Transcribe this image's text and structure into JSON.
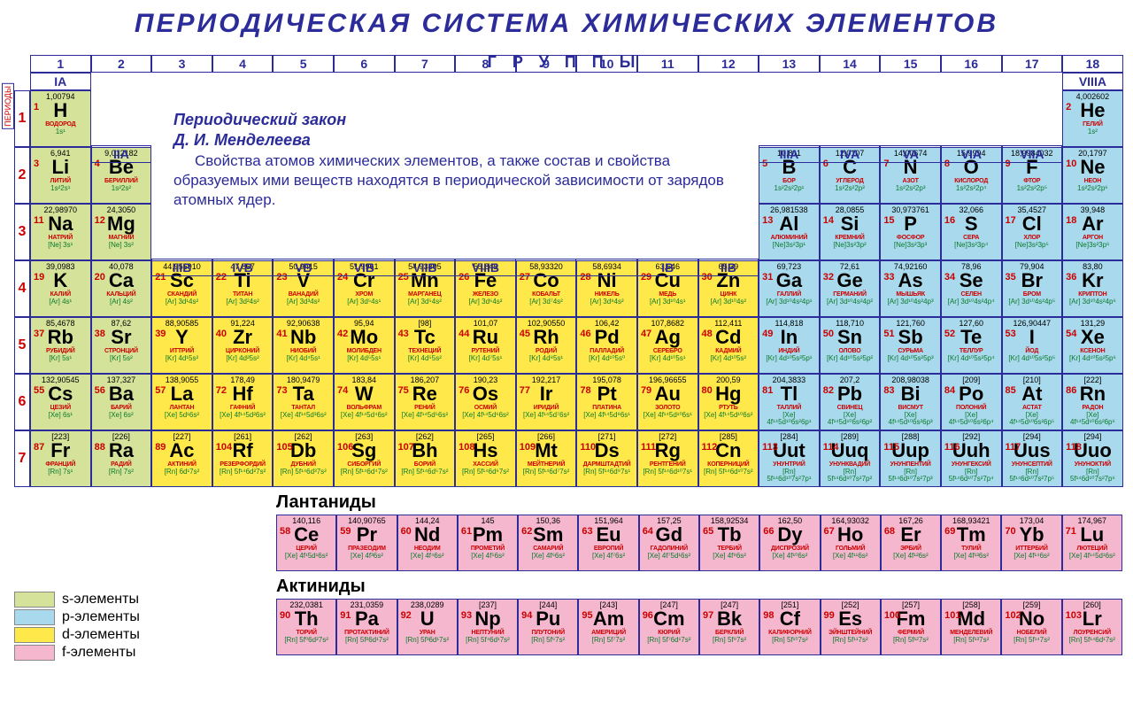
{
  "title": "ПЕРИОДИЧЕСКАЯ СИСТЕМА ХИМИЧЕСКИХ ЭЛЕМЕНТОВ",
  "labels": {
    "periods": "ПЕРИОДЫ",
    "groups": "ГРУППЫ",
    "lanthanides": "Лантаниды",
    "actinides": "Актиниды"
  },
  "law": {
    "title1": "Периодический закон",
    "title2": "Д. И. Менделеева",
    "text": "Свойства атомов химических элементов, а также состав и свойства образуемых ими веществ находятся в периодической зависимости от зарядов атомных ядер."
  },
  "legend": [
    {
      "block": "s",
      "label": "s-элементы",
      "color": "#d4e29a"
    },
    {
      "block": "p",
      "label": "p-элементы",
      "color": "#a8d9ec"
    },
    {
      "block": "d",
      "label": "d-элементы",
      "color": "#ffe94a"
    },
    {
      "block": "f",
      "label": "f-элементы",
      "color": "#f4b7ce"
    }
  ],
  "colnums": [
    "1",
    "2",
    "3",
    "4",
    "5",
    "6",
    "7",
    "8",
    "9",
    "10",
    "11",
    "12",
    "13",
    "14",
    "15",
    "16",
    "17",
    "18"
  ],
  "roman_row1": {
    "0": "IA",
    "17": "VIIIA"
  },
  "roman_row2": {
    "1": "IIA",
    "12": "IIIA",
    "13": "IVA",
    "14": "VA",
    "15": "VIA",
    "16": "VIIA"
  },
  "roman_row4": {
    "2": "IIIB",
    "3": "IVB",
    "4": "VB",
    "5": "VIB",
    "6": "VIIB",
    "7": "VIIIB",
    "8": "",
    "9": "",
    "10": "IB",
    "11": "IIB"
  },
  "periods": [
    "1",
    "2",
    "3",
    "4",
    "5",
    "6",
    "7"
  ],
  "colors": {
    "s": "#d4e29a",
    "p": "#a8d9ec",
    "d": "#ffe94a",
    "f": "#f4b7ce",
    "title": "#2b2b9a",
    "num": "#c00",
    "cfg": "#0a7a2a"
  },
  "elements": [
    {
      "n": 1,
      "s": "H",
      "nm": "ВОДОРОД",
      "m": "1,00794",
      "c": "1s¹",
      "b": "s",
      "p": 1,
      "g": 1
    },
    {
      "n": 2,
      "s": "He",
      "nm": "ГЕЛИЙ",
      "m": "4,002602",
      "c": "1s²",
      "b": "p",
      "p": 1,
      "g": 18
    },
    {
      "n": 3,
      "s": "Li",
      "nm": "ЛИТИЙ",
      "m": "6,941",
      "c": "1s²2s¹",
      "b": "s",
      "p": 2,
      "g": 1
    },
    {
      "n": 4,
      "s": "Be",
      "nm": "БЕРИЛЛИЙ",
      "m": "9,012182",
      "c": "1s²2s²",
      "b": "s",
      "p": 2,
      "g": 2
    },
    {
      "n": 5,
      "s": "B",
      "nm": "БОР",
      "m": "10,811",
      "c": "1s²2s²2p¹",
      "b": "p",
      "p": 2,
      "g": 13
    },
    {
      "n": 6,
      "s": "C",
      "nm": "УГЛЕРОД",
      "m": "12,0107",
      "c": "1s²2s²2p²",
      "b": "p",
      "p": 2,
      "g": 14
    },
    {
      "n": 7,
      "s": "N",
      "nm": "АЗОТ",
      "m": "14,00674",
      "c": "1s²2s²2p³",
      "b": "p",
      "p": 2,
      "g": 15
    },
    {
      "n": 8,
      "s": "O",
      "nm": "КИСЛОРОД",
      "m": "15,9994",
      "c": "1s²2s²2p⁴",
      "b": "p",
      "p": 2,
      "g": 16
    },
    {
      "n": 9,
      "s": "F",
      "nm": "ФТОР",
      "m": "18,9984032",
      "c": "1s²2s²2p⁵",
      "b": "p",
      "p": 2,
      "g": 17
    },
    {
      "n": 10,
      "s": "Ne",
      "nm": "НЕОН",
      "m": "20,1797",
      "c": "1s²2s²2p⁶",
      "b": "p",
      "p": 2,
      "g": 18
    },
    {
      "n": 11,
      "s": "Na",
      "nm": "НАТРИЙ",
      "m": "22,98970",
      "c": "[Ne] 3s¹",
      "b": "s",
      "p": 3,
      "g": 1
    },
    {
      "n": 12,
      "s": "Mg",
      "nm": "МАГНИЙ",
      "m": "24,3050",
      "c": "[Ne] 3s²",
      "b": "s",
      "p": 3,
      "g": 2
    },
    {
      "n": 13,
      "s": "Al",
      "nm": "АЛЮМИНИЙ",
      "m": "26,981538",
      "c": "[Ne]3s²3p¹",
      "b": "p",
      "p": 3,
      "g": 13
    },
    {
      "n": 14,
      "s": "Si",
      "nm": "КРЕМНИЙ",
      "m": "28,0855",
      "c": "[Ne]3s²3p²",
      "b": "p",
      "p": 3,
      "g": 14
    },
    {
      "n": 15,
      "s": "P",
      "nm": "ФОСФОР",
      "m": "30,973761",
      "c": "[Ne]3s²3p³",
      "b": "p",
      "p": 3,
      "g": 15
    },
    {
      "n": 16,
      "s": "S",
      "nm": "СЕРА",
      "m": "32,066",
      "c": "[Ne]3s²3p⁴",
      "b": "p",
      "p": 3,
      "g": 16
    },
    {
      "n": 17,
      "s": "Cl",
      "nm": "ХЛОР",
      "m": "35,4527",
      "c": "[Ne]3s²3p⁵",
      "b": "p",
      "p": 3,
      "g": 17
    },
    {
      "n": 18,
      "s": "Ar",
      "nm": "АРГОН",
      "m": "39,948",
      "c": "[Ne]3s²3p⁶",
      "b": "p",
      "p": 3,
      "g": 18
    },
    {
      "n": 19,
      "s": "K",
      "nm": "КАЛИЙ",
      "m": "39,0983",
      "c": "[Ar] 4s¹",
      "b": "s",
      "p": 4,
      "g": 1
    },
    {
      "n": 20,
      "s": "Ca",
      "nm": "КАЛЬЦИЙ",
      "m": "40,078",
      "c": "[Ar] 4s²",
      "b": "s",
      "p": 4,
      "g": 2
    },
    {
      "n": 21,
      "s": "Sc",
      "nm": "СКАНДИЙ",
      "m": "44,955910",
      "c": "[Ar] 3d¹4s²",
      "b": "d",
      "p": 4,
      "g": 3
    },
    {
      "n": 22,
      "s": "Ti",
      "nm": "ТИТАН",
      "m": "47,867",
      "c": "[Ar] 3d²4s²",
      "b": "d",
      "p": 4,
      "g": 4
    },
    {
      "n": 23,
      "s": "V",
      "nm": "ВАНАДИЙ",
      "m": "50,9415",
      "c": "[Ar] 3d³4s²",
      "b": "d",
      "p": 4,
      "g": 5
    },
    {
      "n": 24,
      "s": "Cr",
      "nm": "ХРОМ",
      "m": "51,9961",
      "c": "[Ar] 3d⁵4s¹",
      "b": "d",
      "p": 4,
      "g": 6
    },
    {
      "n": 25,
      "s": "Mn",
      "nm": "МАРГАНЕЦ",
      "m": "54,93805",
      "c": "[Ar] 3d⁵4s²",
      "b": "d",
      "p": 4,
      "g": 7
    },
    {
      "n": 26,
      "s": "Fe",
      "nm": "ЖЕЛЕЗО",
      "m": "55,845",
      "c": "[Ar] 3d⁶4s²",
      "b": "d",
      "p": 4,
      "g": 8
    },
    {
      "n": 27,
      "s": "Co",
      "nm": "КОБАЛЬТ",
      "m": "58,93320",
      "c": "[Ar] 3d⁷4s²",
      "b": "d",
      "p": 4,
      "g": 9
    },
    {
      "n": 28,
      "s": "Ni",
      "nm": "НИКЕЛЬ",
      "m": "58,6934",
      "c": "[Ar] 3d⁸4s²",
      "b": "d",
      "p": 4,
      "g": 10
    },
    {
      "n": 29,
      "s": "Cu",
      "nm": "МЕДЬ",
      "m": "63,546",
      "c": "[Ar] 3d¹⁰4s¹",
      "b": "d",
      "p": 4,
      "g": 11
    },
    {
      "n": 30,
      "s": "Zn",
      "nm": "ЦИНК",
      "m": "65,39",
      "c": "[Ar] 3d¹⁰4s²",
      "b": "d",
      "p": 4,
      "g": 12
    },
    {
      "n": 31,
      "s": "Ga",
      "nm": "ГАЛЛИЙ",
      "m": "69,723",
      "c": "[Ar] 3d¹⁰4s²4p¹",
      "b": "p",
      "p": 4,
      "g": 13
    },
    {
      "n": 32,
      "s": "Ge",
      "nm": "ГЕРМАНИЙ",
      "m": "72,61",
      "c": "[Ar] 3d¹⁰4s²4p²",
      "b": "p",
      "p": 4,
      "g": 14
    },
    {
      "n": 33,
      "s": "As",
      "nm": "МЫШЬЯК",
      "m": "74,92160",
      "c": "[Ar] 3d¹⁰4s²4p³",
      "b": "p",
      "p": 4,
      "g": 15
    },
    {
      "n": 34,
      "s": "Se",
      "nm": "СЕЛЕН",
      "m": "78,96",
      "c": "[Ar] 3d¹⁰4s²4p⁴",
      "b": "p",
      "p": 4,
      "g": 16
    },
    {
      "n": 35,
      "s": "Br",
      "nm": "БРОМ",
      "m": "79,904",
      "c": "[Ar] 3d¹⁰4s²4p⁵",
      "b": "p",
      "p": 4,
      "g": 17
    },
    {
      "n": 36,
      "s": "Kr",
      "nm": "КРИПТОН",
      "m": "83,80",
      "c": "[Ar] 3d¹⁰4s²4p⁶",
      "b": "p",
      "p": 4,
      "g": 18
    },
    {
      "n": 37,
      "s": "Rb",
      "nm": "РУБИДИЙ",
      "m": "85,4678",
      "c": "[Kr] 5s¹",
      "b": "s",
      "p": 5,
      "g": 1
    },
    {
      "n": 38,
      "s": "Sr",
      "nm": "СТРОНЦИЙ",
      "m": "87,62",
      "c": "[Kr] 5s²",
      "b": "s",
      "p": 5,
      "g": 2
    },
    {
      "n": 39,
      "s": "Y",
      "nm": "ИТТРИЙ",
      "m": "88,90585",
      "c": "[Kr] 4d¹5s²",
      "b": "d",
      "p": 5,
      "g": 3
    },
    {
      "n": 40,
      "s": "Zr",
      "nm": "ЦИРКОНИЙ",
      "m": "91,224",
      "c": "[Kr] 4d²5s²",
      "b": "d",
      "p": 5,
      "g": 4
    },
    {
      "n": 41,
      "s": "Nb",
      "nm": "НИОБИЙ",
      "m": "92,90638",
      "c": "[Kr] 4d⁴5s¹",
      "b": "d",
      "p": 5,
      "g": 5
    },
    {
      "n": 42,
      "s": "Mo",
      "nm": "МОЛИБДЕН",
      "m": "95,94",
      "c": "[Kr] 4d⁵5s¹",
      "b": "d",
      "p": 5,
      "g": 6
    },
    {
      "n": 43,
      "s": "Tc",
      "nm": "ТЕХНЕЦИЙ",
      "m": "[98]",
      "c": "[Kr] 4d⁵5s²",
      "b": "d",
      "p": 5,
      "g": 7
    },
    {
      "n": 44,
      "s": "Ru",
      "nm": "РУТЕНИЙ",
      "m": "101,07",
      "c": "[Kr] 4d⁷5s¹",
      "b": "d",
      "p": 5,
      "g": 8
    },
    {
      "n": 45,
      "s": "Rh",
      "nm": "РОДИЙ",
      "m": "102,90550",
      "c": "[Kr] 4d⁸5s¹",
      "b": "d",
      "p": 5,
      "g": 9
    },
    {
      "n": 46,
      "s": "Pd",
      "nm": "ПАЛЛАДИЙ",
      "m": "106,42",
      "c": "[Kr] 4d¹⁰5s⁰",
      "b": "d",
      "p": 5,
      "g": 10
    },
    {
      "n": 47,
      "s": "Ag",
      "nm": "СЕРЕБРО",
      "m": "107,8682",
      "c": "[Kr] 4d¹⁰5s¹",
      "b": "d",
      "p": 5,
      "g": 11
    },
    {
      "n": 48,
      "s": "Cd",
      "nm": "КАДМИЙ",
      "m": "112,411",
      "c": "[Kr] 4d¹⁰5s²",
      "b": "d",
      "p": 5,
      "g": 12
    },
    {
      "n": 49,
      "s": "In",
      "nm": "ИНДИЙ",
      "m": "114,818",
      "c": "[Kr] 4d¹⁰5s²5p¹",
      "b": "p",
      "p": 5,
      "g": 13
    },
    {
      "n": 50,
      "s": "Sn",
      "nm": "ОЛОВО",
      "m": "118,710",
      "c": "[Kr] 4d¹⁰5s²5p²",
      "b": "p",
      "p": 5,
      "g": 14
    },
    {
      "n": 51,
      "s": "Sb",
      "nm": "СУРЬМА",
      "m": "121,760",
      "c": "[Kr] 4d¹⁰5s²5p³",
      "b": "p",
      "p": 5,
      "g": 15
    },
    {
      "n": 52,
      "s": "Te",
      "nm": "ТЕЛЛУР",
      "m": "127,60",
      "c": "[Kr] 4d¹⁰5s²5p⁴",
      "b": "p",
      "p": 5,
      "g": 16
    },
    {
      "n": 53,
      "s": "I",
      "nm": "ЙОД",
      "m": "126,90447",
      "c": "[Kr] 4d¹⁰5s²5p⁵",
      "b": "p",
      "p": 5,
      "g": 17
    },
    {
      "n": 54,
      "s": "Xe",
      "nm": "КСЕНОН",
      "m": "131,29",
      "c": "[Kr] 4d¹⁰5s²5p⁶",
      "b": "p",
      "p": 5,
      "g": 18
    },
    {
      "n": 55,
      "s": "Cs",
      "nm": "ЦЕЗИЙ",
      "m": "132,90545",
      "c": "[Xe] 6s¹",
      "b": "s",
      "p": 6,
      "g": 1
    },
    {
      "n": 56,
      "s": "Ba",
      "nm": "БАРИЙ",
      "m": "137,327",
      "c": "[Xe] 6s²",
      "b": "s",
      "p": 6,
      "g": 2
    },
    {
      "n": 57,
      "s": "La",
      "nm": "ЛАНТАН",
      "m": "138,9055",
      "c": "[Xe] 5d¹6s²",
      "b": "d",
      "p": 6,
      "g": 3
    },
    {
      "n": 72,
      "s": "Hf",
      "nm": "ГАФНИЙ",
      "m": "178,49",
      "c": "[Xe] 4f¹⁴5d²6s²",
      "b": "d",
      "p": 6,
      "g": 4
    },
    {
      "n": 73,
      "s": "Ta",
      "nm": "ТАНТАЛ",
      "m": "180,9479",
      "c": "[Xe] 4f¹⁴5d³6s²",
      "b": "d",
      "p": 6,
      "g": 5
    },
    {
      "n": 74,
      "s": "W",
      "nm": "ВОЛЬФРАМ",
      "m": "183,84",
      "c": "[Xe] 4f¹⁴5d⁴6s²",
      "b": "d",
      "p": 6,
      "g": 6
    },
    {
      "n": 75,
      "s": "Re",
      "nm": "РЕНИЙ",
      "m": "186,207",
      "c": "[Xe] 4f¹⁴5d⁵6s²",
      "b": "d",
      "p": 6,
      "g": 7
    },
    {
      "n": 76,
      "s": "Os",
      "nm": "ОСМИЙ",
      "m": "190,23",
      "c": "[Xe] 4f¹⁴5d⁶6s²",
      "b": "d",
      "p": 6,
      "g": 8
    },
    {
      "n": 77,
      "s": "Ir",
      "nm": "ИРИДИЙ",
      "m": "192,217",
      "c": "[Xe] 4f¹⁴5d⁷6s²",
      "b": "d",
      "p": 6,
      "g": 9
    },
    {
      "n": 78,
      "s": "Pt",
      "nm": "ПЛАТИНА",
      "m": "195,078",
      "c": "[Xe] 4f¹⁴5d⁹6s¹",
      "b": "d",
      "p": 6,
      "g": 10
    },
    {
      "n": 79,
      "s": "Au",
      "nm": "ЗОЛОТО",
      "m": "196,96655",
      "c": "[Xe] 4f¹⁴5d¹⁰6s¹",
      "b": "d",
      "p": 6,
      "g": 11
    },
    {
      "n": 80,
      "s": "Hg",
      "nm": "РТУТЬ",
      "m": "200,59",
      "c": "[Xe] 4f¹⁴5d¹⁰6s²",
      "b": "d",
      "p": 6,
      "g": 12
    },
    {
      "n": 81,
      "s": "Tl",
      "nm": "ТАЛЛИЙ",
      "m": "204,3833",
      "c": "[Xe] 4f¹⁴5d¹⁰6s²6p¹",
      "b": "p",
      "p": 6,
      "g": 13
    },
    {
      "n": 82,
      "s": "Pb",
      "nm": "СВИНЕЦ",
      "m": "207,2",
      "c": "[Xe] 4f¹⁴5d¹⁰6s²6p²",
      "b": "p",
      "p": 6,
      "g": 14
    },
    {
      "n": 83,
      "s": "Bi",
      "nm": "ВИСМУТ",
      "m": "208,98038",
      "c": "[Xe] 4f¹⁴5d¹⁰6s²6p³",
      "b": "p",
      "p": 6,
      "g": 15
    },
    {
      "n": 84,
      "s": "Po",
      "nm": "ПОЛОНИЙ",
      "m": "[209]",
      "c": "[Xe] 4f¹⁴5d¹⁰6s²6p⁴",
      "b": "p",
      "p": 6,
      "g": 16
    },
    {
      "n": 85,
      "s": "At",
      "nm": "АСТАТ",
      "m": "[210]",
      "c": "[Xe] 4f¹⁴5d¹⁰6s²6p⁵",
      "b": "p",
      "p": 6,
      "g": 17
    },
    {
      "n": 86,
      "s": "Rn",
      "nm": "РАДОН",
      "m": "[222]",
      "c": "[Xe] 4f¹⁴5d¹⁰6s²6p⁶",
      "b": "p",
      "p": 6,
      "g": 18
    },
    {
      "n": 87,
      "s": "Fr",
      "nm": "ФРАНЦИЙ",
      "m": "[223]",
      "c": "[Rn] 7s¹",
      "b": "s",
      "p": 7,
      "g": 1
    },
    {
      "n": 88,
      "s": "Ra",
      "nm": "РАДИЙ",
      "m": "[226]",
      "c": "[Rn] 7s²",
      "b": "s",
      "p": 7,
      "g": 2
    },
    {
      "n": 89,
      "s": "Ac",
      "nm": "АКТИНИЙ",
      "m": "[227]",
      "c": "[Rn] 6d¹7s²",
      "b": "d",
      "p": 7,
      "g": 3
    },
    {
      "n": 104,
      "s": "Rf",
      "nm": "РЕЗЕРФОРДИЙ",
      "m": "[261]",
      "c": "[Rn] 5f¹⁴6d²7s²",
      "b": "d",
      "p": 7,
      "g": 4
    },
    {
      "n": 105,
      "s": "Db",
      "nm": "ДУБНИЙ",
      "m": "[262]",
      "c": "[Rn] 5f¹⁴6d³7s²",
      "b": "d",
      "p": 7,
      "g": 5
    },
    {
      "n": 106,
      "s": "Sg",
      "nm": "СИБОРГИЙ",
      "m": "[263]",
      "c": "[Rn] 5f¹⁴6d⁴7s²",
      "b": "d",
      "p": 7,
      "g": 6
    },
    {
      "n": 107,
      "s": "Bh",
      "nm": "БОРИЙ",
      "m": "[262]",
      "c": "[Rn] 5f¹⁴6d⁵7s²",
      "b": "d",
      "p": 7,
      "g": 7
    },
    {
      "n": 108,
      "s": "Hs",
      "nm": "ХАССИЙ",
      "m": "[265]",
      "c": "[Rn] 5f¹⁴6d⁶7s²",
      "b": "d",
      "p": 7,
      "g": 8
    },
    {
      "n": 109,
      "s": "Mt",
      "nm": "МЕЙТНЕРИЙ",
      "m": "[266]",
      "c": "[Rn] 5f¹⁴6d⁷7s²",
      "b": "d",
      "p": 7,
      "g": 9
    },
    {
      "n": 110,
      "s": "Ds",
      "nm": "ДАРМШТАДТИЙ",
      "m": "[271]",
      "c": "[Rn] 5f¹⁴6d⁹7s¹",
      "b": "d",
      "p": 7,
      "g": 10
    },
    {
      "n": 111,
      "s": "Rg",
      "nm": "РЕНТГЕНИЙ",
      "m": "[272]",
      "c": "[Rn] 5f¹⁴6d¹⁰7s¹",
      "b": "d",
      "p": 7,
      "g": 11
    },
    {
      "n": 112,
      "s": "Cn",
      "nm": "КОПЕРНИЦИЙ",
      "m": "[285]",
      "c": "[Rn] 5f¹⁴6d¹⁰7s²",
      "b": "d",
      "p": 7,
      "g": 12
    },
    {
      "n": 113,
      "s": "Uut",
      "nm": "УНУНТРИЙ",
      "m": "[284]",
      "c": "[Rn] 5f¹⁴6d¹⁰7s²7p¹",
      "b": "p",
      "p": 7,
      "g": 13
    },
    {
      "n": 114,
      "s": "Uuq",
      "nm": "УНУНКВАДИЙ",
      "m": "[289]",
      "c": "[Rn] 5f¹⁴6d¹⁰7s²7p²",
      "b": "p",
      "p": 7,
      "g": 14
    },
    {
      "n": 115,
      "s": "Uup",
      "nm": "УНУНПЕНТИЙ",
      "m": "[288]",
      "c": "[Rn] 5f¹⁴6d¹⁰7s²7p³",
      "b": "p",
      "p": 7,
      "g": 15
    },
    {
      "n": 116,
      "s": "Uuh",
      "nm": "УНУНГЕКСИЙ",
      "m": "[292]",
      "c": "[Rn] 5f¹⁴6d¹⁰7s²7p⁴",
      "b": "p",
      "p": 7,
      "g": 16
    },
    {
      "n": 117,
      "s": "Uus",
      "nm": "УНУНСЕПТИЙ",
      "m": "[294]",
      "c": "[Rn] 5f¹⁴6d¹⁰7s²7p⁵",
      "b": "p",
      "p": 7,
      "g": 17
    },
    {
      "n": 118,
      "s": "Uuo",
      "nm": "УНУНОКТИЙ",
      "m": "[294]",
      "c": "[Rn] 5f¹⁴6d¹⁰7s²7p⁶",
      "b": "p",
      "p": 7,
      "g": 18
    }
  ],
  "lanthanides": [
    {
      "n": 58,
      "s": "Ce",
      "nm": "ЦЕРИЙ",
      "m": "140,116",
      "c": "[Xe] 4f¹5d¹6s²",
      "b": "f"
    },
    {
      "n": 59,
      "s": "Pr",
      "nm": "ПРАЗЕОДИМ",
      "m": "140,90765",
      "c": "[Xe] 4f³6s²",
      "b": "f"
    },
    {
      "n": 60,
      "s": "Nd",
      "nm": "НЕОДИМ",
      "m": "144,24",
      "c": "[Xe] 4f⁴6s²",
      "b": "f"
    },
    {
      "n": 61,
      "s": "Pm",
      "nm": "ПРОМЕТИЙ",
      "m": "145",
      "c": "[Xe] 4f⁵6s²",
      "b": "f"
    },
    {
      "n": 62,
      "s": "Sm",
      "nm": "САМАРИЙ",
      "m": "150,36",
      "c": "[Xe] 4f⁶6s²",
      "b": "f"
    },
    {
      "n": 63,
      "s": "Eu",
      "nm": "ЕВРОПИЙ",
      "m": "151,964",
      "c": "[Xe] 4f⁷6s²",
      "b": "f"
    },
    {
      "n": 64,
      "s": "Gd",
      "nm": "ГАДОЛИНИЙ",
      "m": "157,25",
      "c": "[Xe] 4f⁷5d¹6s²",
      "b": "f"
    },
    {
      "n": 65,
      "s": "Tb",
      "nm": "ТЕРБИЙ",
      "m": "158,92534",
      "c": "[Xe] 4f⁹6s²",
      "b": "f"
    },
    {
      "n": 66,
      "s": "Dy",
      "nm": "ДИСПРОЗИЙ",
      "m": "162,50",
      "c": "[Xe] 4f¹⁰6s²",
      "b": "f"
    },
    {
      "n": 67,
      "s": "Ho",
      "nm": "ГОЛЬМИЙ",
      "m": "164,93032",
      "c": "[Xe] 4f¹¹6s²",
      "b": "f"
    },
    {
      "n": 68,
      "s": "Er",
      "nm": "ЭРБИЙ",
      "m": "167,26",
      "c": "[Xe] 4f¹²6s²",
      "b": "f"
    },
    {
      "n": 69,
      "s": "Tm",
      "nm": "ТУЛИЙ",
      "m": "168,93421",
      "c": "[Xe] 4f¹³6s²",
      "b": "f"
    },
    {
      "n": 70,
      "s": "Yb",
      "nm": "ИТТЕРБИЙ",
      "m": "173,04",
      "c": "[Xe] 4f¹⁴6s²",
      "b": "f"
    },
    {
      "n": 71,
      "s": "Lu",
      "nm": "ЛЮТЕЦИЙ",
      "m": "174,967",
      "c": "[Xe] 4f¹⁴5d¹6s²",
      "b": "f"
    }
  ],
  "actinides": [
    {
      "n": 90,
      "s": "Th",
      "nm": "ТОРИЙ",
      "m": "232,0381",
      "c": "[Rn] 5f⁰6d²7s²",
      "b": "f"
    },
    {
      "n": 91,
      "s": "Pa",
      "nm": "ПРОТАКТИНИЙ",
      "m": "231,0359",
      "c": "[Rn] 5f²6d¹7s²",
      "b": "f"
    },
    {
      "n": 92,
      "s": "U",
      "nm": "УРАН",
      "m": "238,0289",
      "c": "[Rn] 5f³6d¹7s²",
      "b": "f"
    },
    {
      "n": 93,
      "s": "Np",
      "nm": "НЕПТУНИЙ",
      "m": "[237]",
      "c": "[Rn] 5f⁴6d¹7s²",
      "b": "f"
    },
    {
      "n": 94,
      "s": "Pu",
      "nm": "ПЛУТОНИЙ",
      "m": "[244]",
      "c": "[Rn] 5f⁶7s²",
      "b": "f"
    },
    {
      "n": 95,
      "s": "Am",
      "nm": "АМЕРИЦИЙ",
      "m": "[243]",
      "c": "[Rn] 5f⁷7s²",
      "b": "f"
    },
    {
      "n": 96,
      "s": "Cm",
      "nm": "КЮРИЙ",
      "m": "[247]",
      "c": "[Rn] 5f⁷6d¹7s²",
      "b": "f"
    },
    {
      "n": 97,
      "s": "Bk",
      "nm": "БЕРКЛИЙ",
      "m": "[247]",
      "c": "[Rn] 5f⁹7s²",
      "b": "f"
    },
    {
      "n": 98,
      "s": "Cf",
      "nm": "КАЛИФОРНИЙ",
      "m": "[251]",
      "c": "[Rn] 5f¹⁰7s²",
      "b": "f"
    },
    {
      "n": 99,
      "s": "Es",
      "nm": "ЭЙНШТЕЙНИЙ",
      "m": "[252]",
      "c": "[Rn] 5f¹¹7s²",
      "b": "f"
    },
    {
      "n": 100,
      "s": "Fm",
      "nm": "ФЕРМИЙ",
      "m": "[257]",
      "c": "[Rn] 5f¹²7s²",
      "b": "f"
    },
    {
      "n": 101,
      "s": "Md",
      "nm": "МЕНДЕЛЕВИЙ",
      "m": "[258]",
      "c": "[Rn] 5f¹³7s²",
      "b": "f"
    },
    {
      "n": 102,
      "s": "No",
      "nm": "НОБЕЛИЙ",
      "m": "[259]",
      "c": "[Rn] 5f¹⁴7s²",
      "b": "f"
    },
    {
      "n": 103,
      "s": "Lr",
      "nm": "ЛОУРЕНСИЙ",
      "m": "[260]",
      "c": "[Rn] 5f¹⁴6d¹7s²",
      "b": "f"
    }
  ]
}
